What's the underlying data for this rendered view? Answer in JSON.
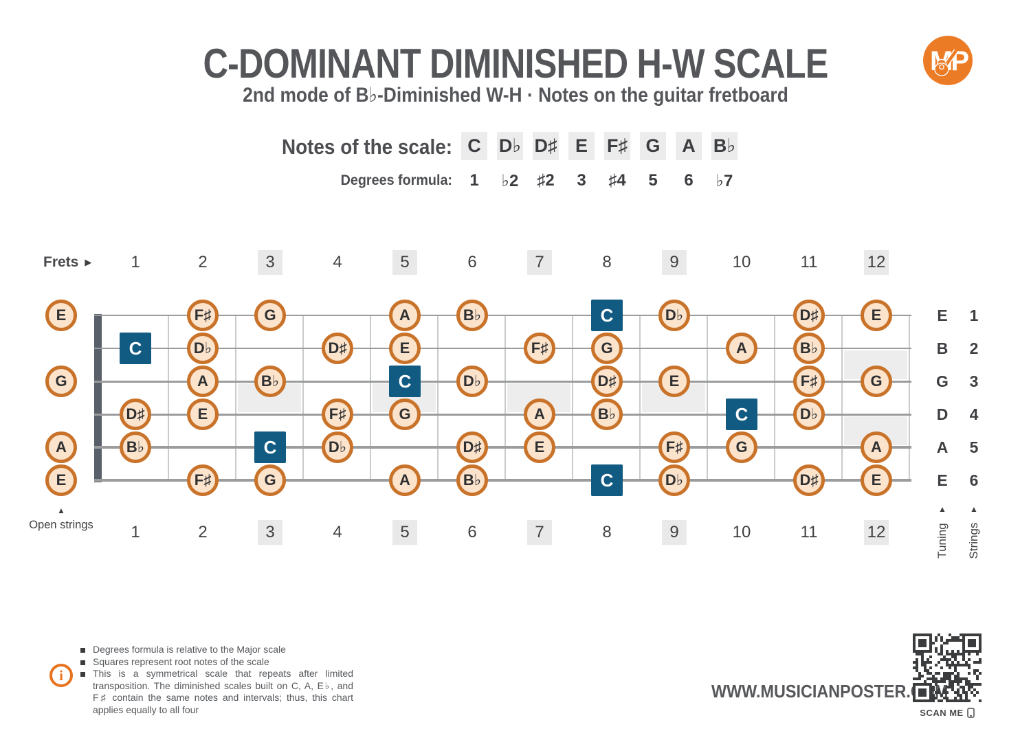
{
  "header": {
    "title": "C-DOMINANT DIMINISHED H-W SCALE",
    "subtitle": "2nd mode of B♭-Diminished W-H · Notes on the guitar fretboard",
    "logo_text": "MP"
  },
  "scale": {
    "notes_label": "Notes of the scale:",
    "degrees_label": "Degrees formula:",
    "notes": [
      "C",
      "D♭",
      "D♯",
      "E",
      "F♯",
      "G",
      "A",
      "B♭"
    ],
    "degrees": [
      "1",
      "♭2",
      "♯2",
      "3",
      "♯4",
      "5",
      "6",
      "♭7"
    ],
    "root_note": "C"
  },
  "fretboard": {
    "frets_label": "Frets",
    "fret_numbers": [
      "1",
      "2",
      "3",
      "4",
      "5",
      "6",
      "7",
      "8",
      "9",
      "10",
      "11",
      "12"
    ],
    "marked_frets": [
      3,
      5,
      7,
      9,
      12
    ],
    "inlay_frets_single": [
      3,
      5,
      7,
      9
    ],
    "inlay_frets_double": [
      12
    ],
    "open_strings_label": "Open strings",
    "tuning_label": "Tuning",
    "strings_label": "Strings",
    "strings": [
      {
        "number": "1",
        "tuning": "E",
        "open_note": "E",
        "notes": [
          {
            "fret": 2,
            "note": "F♯"
          },
          {
            "fret": 3,
            "note": "G"
          },
          {
            "fret": 5,
            "note": "A"
          },
          {
            "fret": 6,
            "note": "B♭"
          },
          {
            "fret": 8,
            "note": "C"
          },
          {
            "fret": 9,
            "note": "D♭"
          },
          {
            "fret": 11,
            "note": "D♯"
          },
          {
            "fret": 12,
            "note": "E"
          }
        ]
      },
      {
        "number": "2",
        "tuning": "B",
        "open_note": null,
        "notes": [
          {
            "fret": 1,
            "note": "C"
          },
          {
            "fret": 2,
            "note": "D♭"
          },
          {
            "fret": 4,
            "note": "D♯"
          },
          {
            "fret": 5,
            "note": "E"
          },
          {
            "fret": 7,
            "note": "F♯"
          },
          {
            "fret": 8,
            "note": "G"
          },
          {
            "fret": 10,
            "note": "A"
          },
          {
            "fret": 11,
            "note": "B♭"
          }
        ]
      },
      {
        "number": "3",
        "tuning": "G",
        "open_note": "G",
        "notes": [
          {
            "fret": 2,
            "note": "A"
          },
          {
            "fret": 3,
            "note": "B♭"
          },
          {
            "fret": 5,
            "note": "C"
          },
          {
            "fret": 6,
            "note": "D♭"
          },
          {
            "fret": 8,
            "note": "D♯"
          },
          {
            "fret": 9,
            "note": "E"
          },
          {
            "fret": 11,
            "note": "F♯"
          },
          {
            "fret": 12,
            "note": "G"
          }
        ]
      },
      {
        "number": "4",
        "tuning": "D",
        "open_note": null,
        "notes": [
          {
            "fret": 1,
            "note": "D♯"
          },
          {
            "fret": 2,
            "note": "E"
          },
          {
            "fret": 4,
            "note": "F♯"
          },
          {
            "fret": 5,
            "note": "G"
          },
          {
            "fret": 7,
            "note": "A"
          },
          {
            "fret": 8,
            "note": "B♭"
          },
          {
            "fret": 10,
            "note": "C"
          },
          {
            "fret": 11,
            "note": "D♭"
          }
        ]
      },
      {
        "number": "5",
        "tuning": "A",
        "open_note": "A",
        "notes": [
          {
            "fret": 1,
            "note": "B♭"
          },
          {
            "fret": 3,
            "note": "C"
          },
          {
            "fret": 4,
            "note": "D♭"
          },
          {
            "fret": 6,
            "note": "D♯"
          },
          {
            "fret": 7,
            "note": "E"
          },
          {
            "fret": 9,
            "note": "F♯"
          },
          {
            "fret": 10,
            "note": "G"
          },
          {
            "fret": 12,
            "note": "A"
          }
        ]
      },
      {
        "number": "6",
        "tuning": "E",
        "open_note": "E",
        "notes": [
          {
            "fret": 2,
            "note": "F♯"
          },
          {
            "fret": 3,
            "note": "G"
          },
          {
            "fret": 5,
            "note": "A"
          },
          {
            "fret": 6,
            "note": "B♭"
          },
          {
            "fret": 8,
            "note": "C"
          },
          {
            "fret": 9,
            "note": "D♭"
          },
          {
            "fret": 11,
            "note": "D♯"
          },
          {
            "fret": 12,
            "note": "E"
          }
        ]
      }
    ]
  },
  "footer": {
    "info_notes": [
      "Degrees formula is relative to the Major scale",
      "Squares represent root notes of the scale",
      "This is a symmetrical scale that repeats after limited transposition. The diminished scales built on C, A, E♭, and F♯ contain the same notes and intervals; thus, this chart applies equally to all four"
    ],
    "website": "WWW.MUSICIANPOSTER.COM",
    "scan_label": "SCAN ME"
  },
  "colors": {
    "orange": "#e8731f",
    "logo_orange": "#ec7b26",
    "note_border": "#c97229",
    "note_fill": "#fbe3cc",
    "root_blue": "#115a82",
    "gray_box": "#ececec",
    "text_dark": "#54565a"
  }
}
